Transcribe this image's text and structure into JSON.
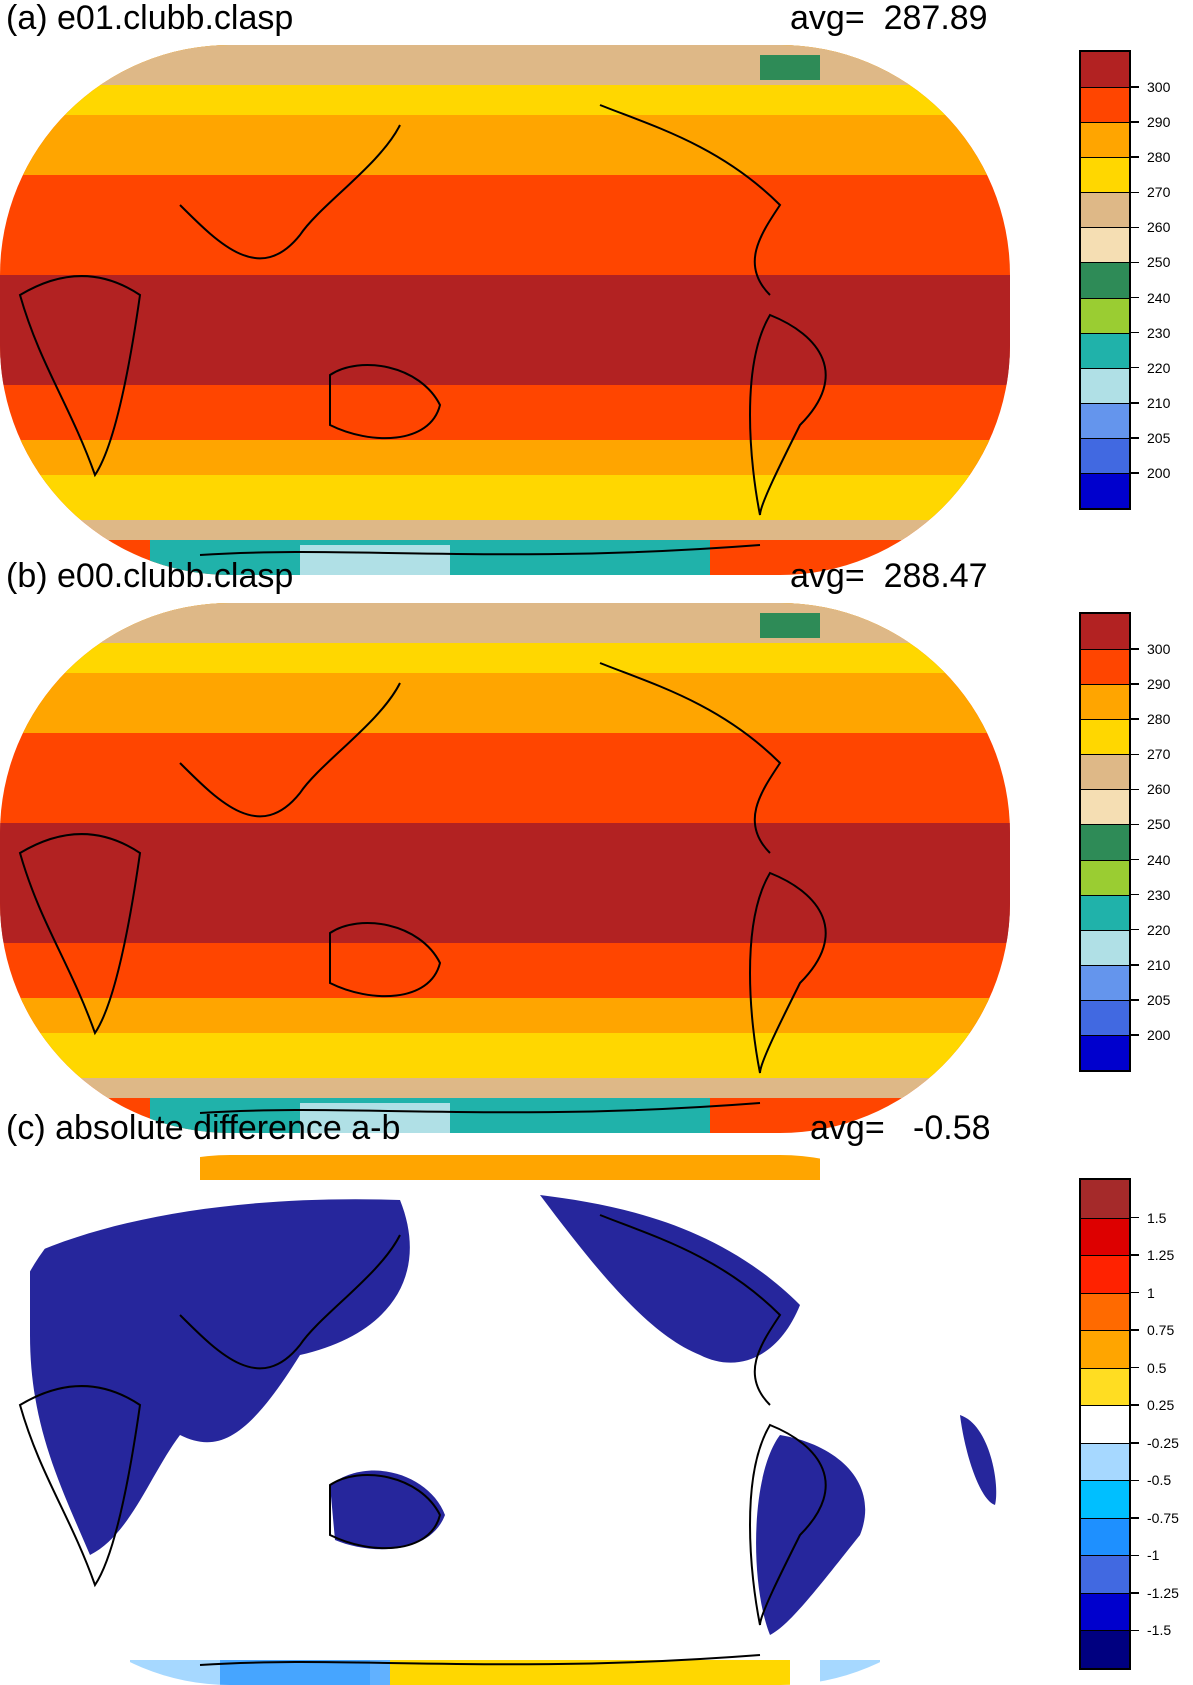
{
  "panels": [
    {
      "title": "(a) e01.clubb.clasp",
      "avg_label": "avg=",
      "avg_value": "287.89",
      "colorbar": {
        "labels": [
          "300",
          "290",
          "280",
          "270",
          "260",
          "250",
          "240",
          "230",
          "220",
          "210",
          "205",
          "200"
        ],
        "colors": [
          "#b22222",
          "#ff4500",
          "#ffa500",
          "#ffd700",
          "#deb887",
          "#f5deb3",
          "#2e8b57",
          "#9acd32",
          "#20b2aa",
          "#b0e0e6",
          "#6495ed",
          "#4169e1",
          "#0000cd"
        ]
      }
    },
    {
      "title": "(b) e00.clubb.clasp",
      "avg_label": "avg=",
      "avg_value": "288.47",
      "colorbar": {
        "labels": [
          "300",
          "290",
          "280",
          "270",
          "260",
          "250",
          "240",
          "230",
          "220",
          "210",
          "205",
          "200"
        ],
        "colors": [
          "#b22222",
          "#ff4500",
          "#ffa500",
          "#ffd700",
          "#deb887",
          "#f5deb3",
          "#2e8b57",
          "#9acd32",
          "#20b2aa",
          "#b0e0e6",
          "#6495ed",
          "#4169e1",
          "#0000cd"
        ]
      }
    },
    {
      "title": "(c) absolute difference a-b",
      "avg_label": "avg=",
      "avg_value": "-0.58",
      "colorbar": {
        "labels": [
          "1.5",
          "1.25",
          "1",
          "0.75",
          "0.5",
          "0.25",
          "-0.25",
          "-0.5",
          "-0.75",
          "-1",
          "-1.25",
          "-1.5"
        ],
        "colors": [
          "#a52a2a",
          "#dd0000",
          "#ff2200",
          "#ff6a00",
          "#ffa500",
          "#ffdd22",
          "#ffffff",
          "#a6d8ff",
          "#00bfff",
          "#1e90ff",
          "#4169e1",
          "#0000cd",
          "#000080"
        ]
      }
    }
  ]
}
